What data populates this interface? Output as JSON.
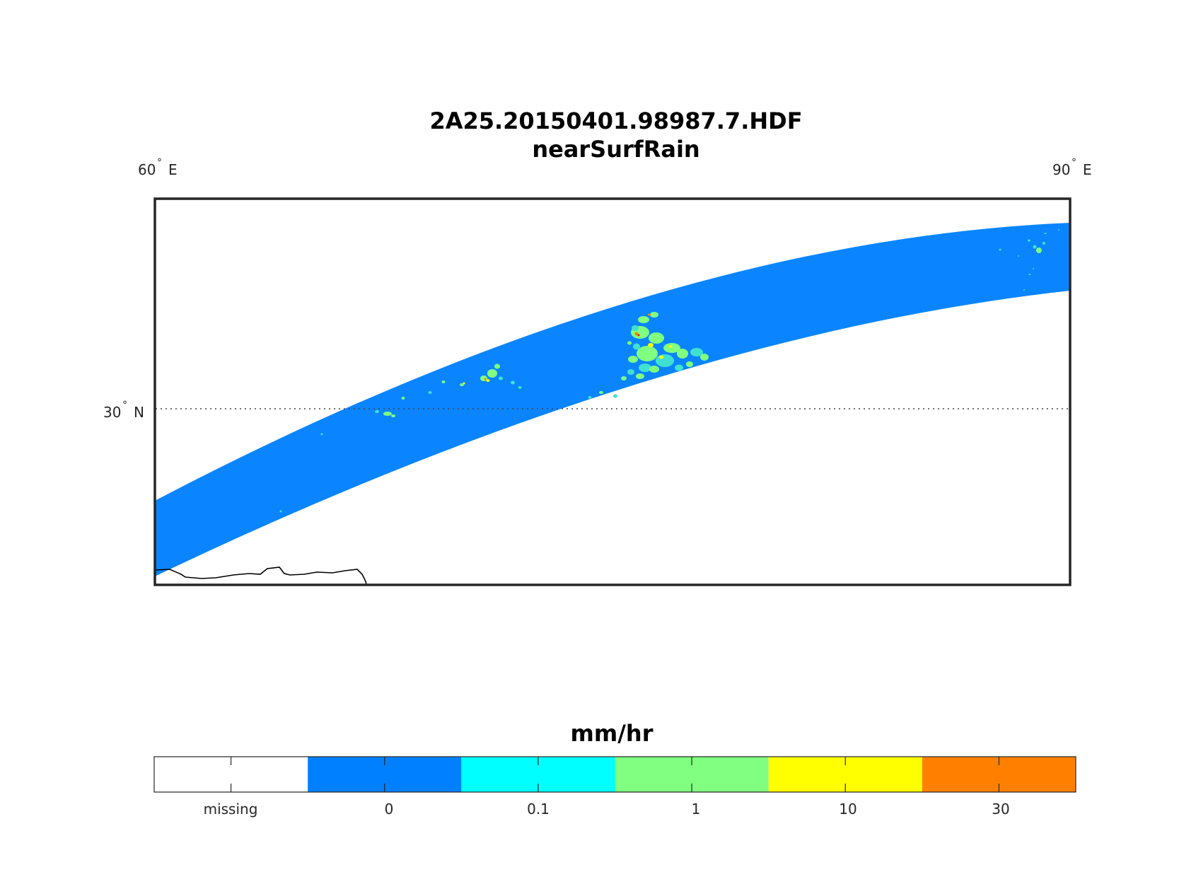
{
  "title_line1": "2A25.20150401.98987.7.HDF",
  "title_line2": "nearSurfRain",
  "lon_labels": [
    "60",
    "90"
  ],
  "lon_suffix": "E",
  "lat_labels": [
    "30"
  ],
  "lat_suffix": "N",
  "degree_mark": "°",
  "colorbar": {
    "title": "mm/hr",
    "labels": [
      "missing",
      "0",
      "0.1",
      "1",
      "10",
      "30"
    ],
    "colors": [
      "#ffffff",
      "#0080ff",
      "#00ffff",
      "#80ff80",
      "#ffff00",
      "#ff8000"
    ]
  },
  "swath_color": "#0a85ff",
  "rain_colors": {
    "light": "#40e0d0",
    "moderate": "#80ff80",
    "heavy": "#ffff00",
    "intense": "#ff8000",
    "extreme": "#d42020"
  }
}
